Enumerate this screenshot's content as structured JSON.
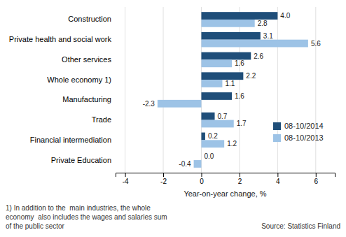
{
  "chart_data": {
    "type": "bar",
    "orientation": "horizontal",
    "categories": [
      "Construction",
      "Private health and social work",
      "Other services",
      "Whole economy 1)",
      "Manufacturing",
      "Trade",
      "Financial intermediation",
      "Private Education"
    ],
    "series": [
      {
        "name": "08-10/2014",
        "color": "#1f4e79",
        "values": [
          4.0,
          3.1,
          2.6,
          2.2,
          1.6,
          0.7,
          0.2,
          0.0
        ],
        "value_labels": [
          "4.0",
          "3.1",
          "2.6",
          "2.2",
          "1.6",
          "0.7",
          "0.2",
          "0.0"
        ]
      },
      {
        "name": "08-10/2013",
        "color": "#9dc3e6",
        "values": [
          2.8,
          5.6,
          1.6,
          1.1,
          -2.3,
          1.7,
          1.2,
          -0.4
        ],
        "value_labels": [
          "2.8",
          "5.6",
          "1.6",
          "1.1",
          "-2.3",
          "1.7",
          "1.2",
          "-0.4"
        ]
      }
    ],
    "xlim": [
      -4.5,
      7.0
    ],
    "xticks": [
      -4,
      -2,
      0,
      2,
      4,
      6
    ],
    "xlabel": "Year-on-year change, %",
    "notes": [
      "1) In addition to the  main industries, the whole",
      "economy  also includes the wages and salaries sum",
      "of the public sector"
    ],
    "source": "Source: Statistics Finland",
    "grid": true,
    "legend": "lower right",
    "data_labels": true
  }
}
